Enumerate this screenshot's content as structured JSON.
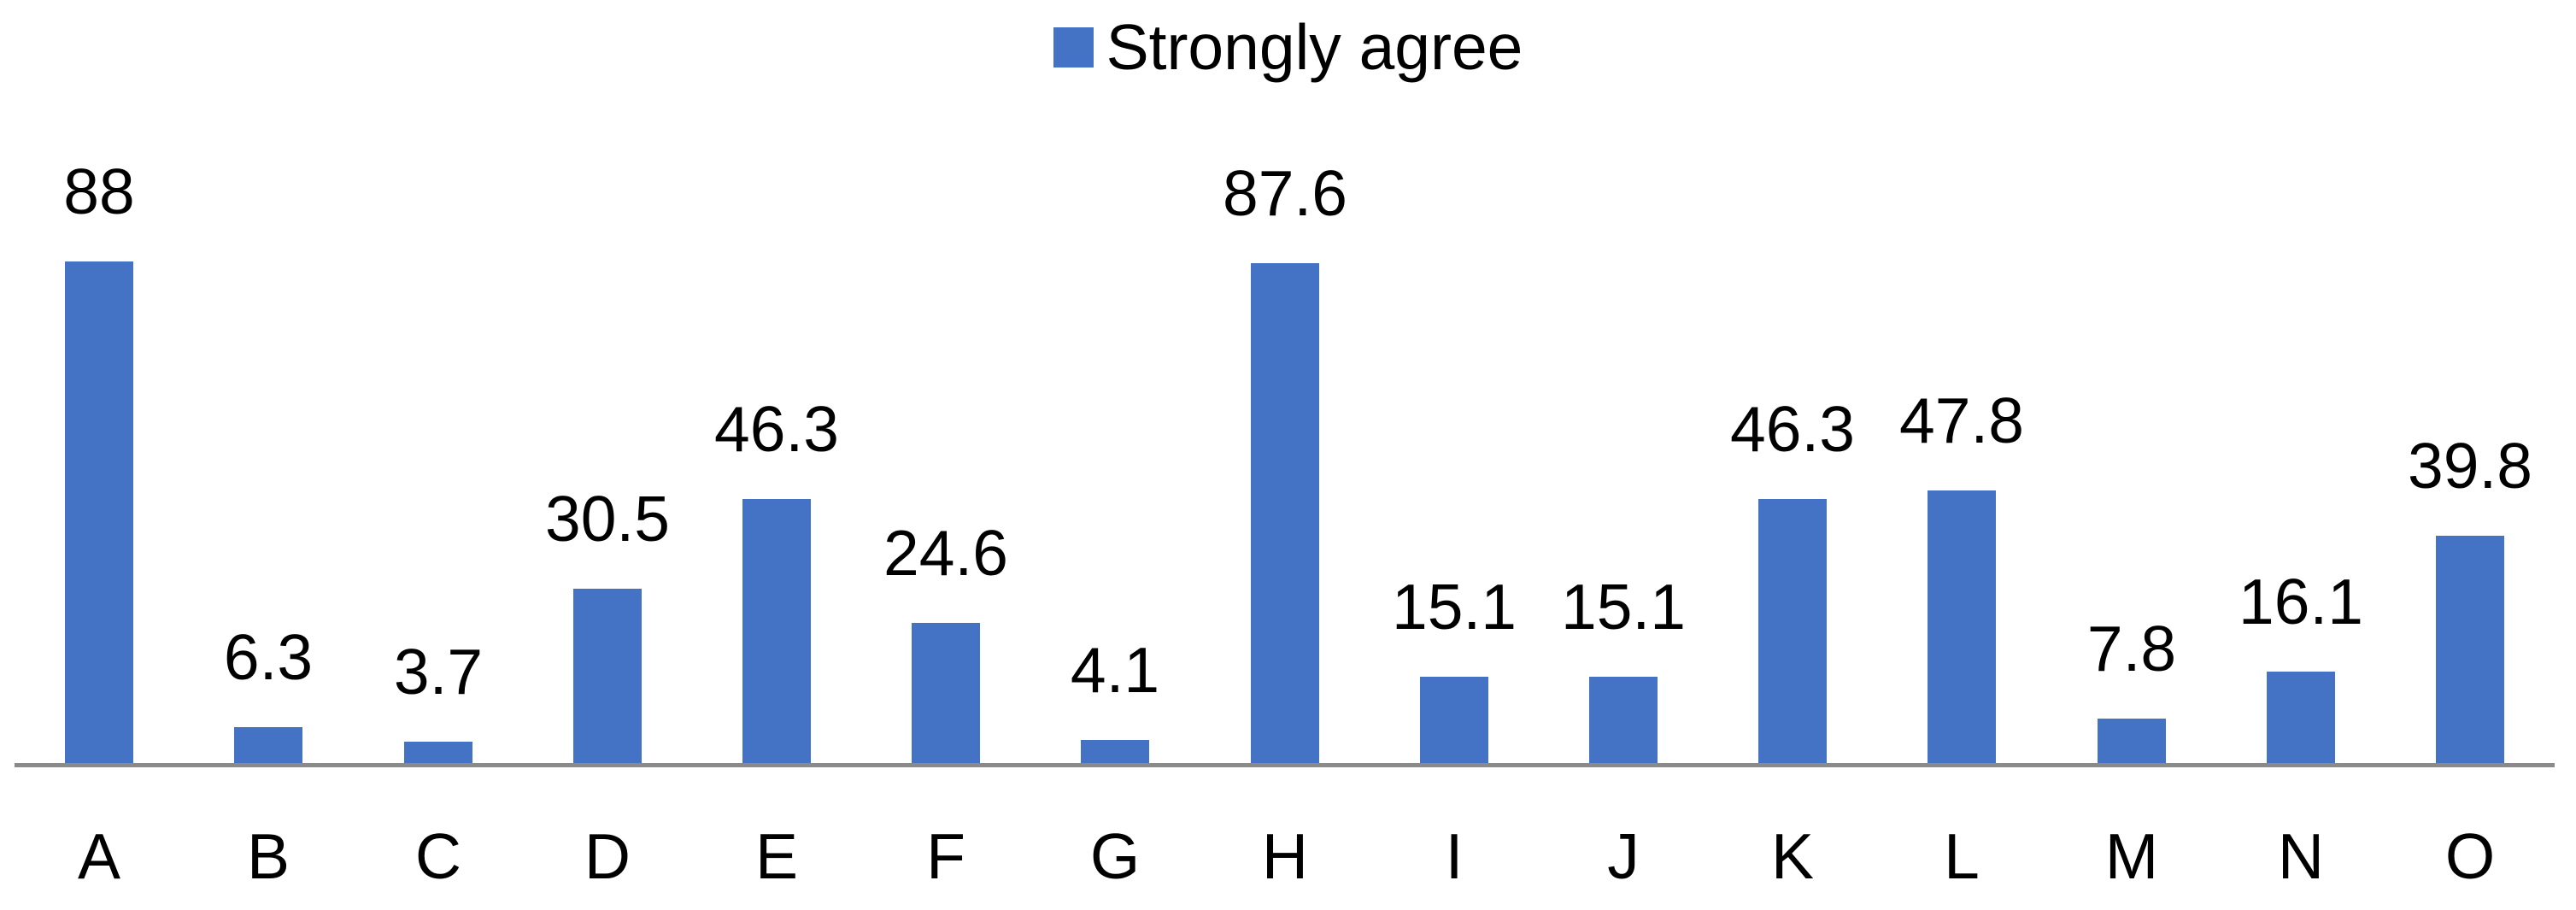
{
  "chart_data": {
    "type": "bar",
    "title": "",
    "categories": [
      "A",
      "B",
      "C",
      "D",
      "E",
      "F",
      "G",
      "H",
      "I",
      "J",
      "K",
      "L",
      "M",
      "N",
      "O"
    ],
    "series": [
      {
        "name": "Strongly agree",
        "values": [
          88,
          6.3,
          3.7,
          30.5,
          46.3,
          24.6,
          4.1,
          87.6,
          15.1,
          15.1,
          46.3,
          47.8,
          7.8,
          16.1,
          39.8
        ]
      }
    ],
    "data_labels": [
      "88",
      "6.3",
      "3.7",
      "30.5",
      "46.3",
      "24.6",
      "4.1",
      "87.6",
      "15.1",
      "15.1",
      "46.3",
      "47.8",
      "7.8",
      "16.1",
      "39.8"
    ],
    "legend": {
      "entries": [
        "Strongly agree"
      ],
      "position": "top"
    },
    "bar_color": "#4472C4",
    "axis_line_color": "#8A8A8A",
    "text_color": "#000000",
    "ylim": [
      0,
      100
    ],
    "grid": false,
    "y_axis_visible": false,
    "x_axis_labels_visible": true
  }
}
